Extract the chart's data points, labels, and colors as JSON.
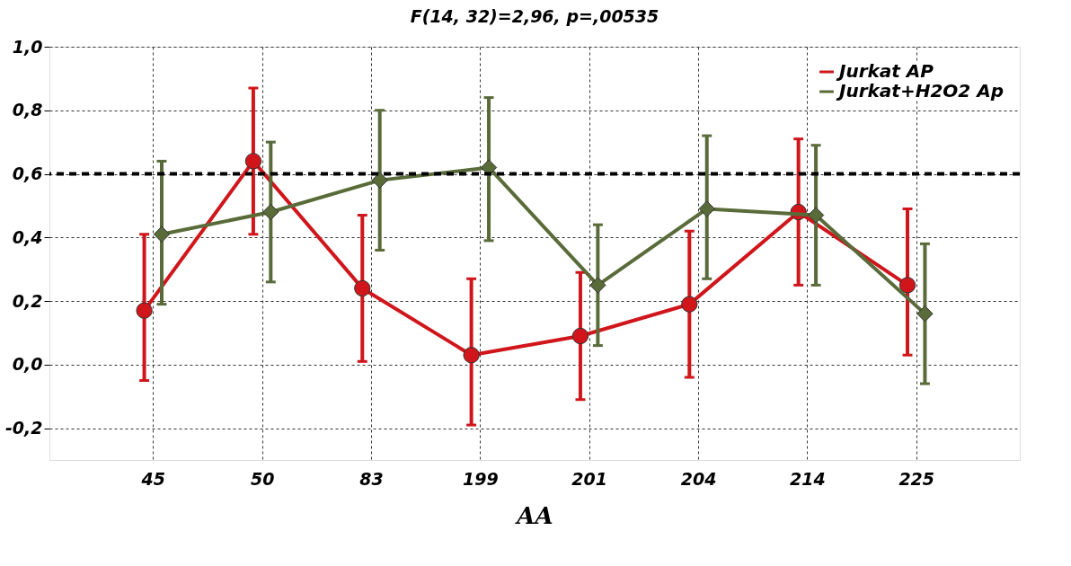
{
  "chart_data": {
    "type": "line",
    "title": "F(14, 32)=2,96, p=,00535",
    "xlabel": "AA",
    "categories": [
      "45",
      "50",
      "83",
      "199",
      "201",
      "204",
      "214",
      "225"
    ],
    "series": [
      {
        "name": "Jurkat AP",
        "color": "#d0161b",
        "marker": "circle",
        "values": [
          0.17,
          0.64,
          0.24,
          0.03,
          0.09,
          0.19,
          0.48,
          0.25
        ],
        "errors": [
          [
            -0.05,
            0.41
          ],
          [
            0.41,
            0.87
          ],
          [
            0.01,
            0.47
          ],
          [
            -0.19,
            0.27
          ],
          [
            -0.11,
            0.29
          ],
          [
            -0.04,
            0.42
          ],
          [
            0.25,
            0.71
          ],
          [
            0.03,
            0.49
          ]
        ]
      },
      {
        "name": "Jurkat+H2O2 Ap",
        "color": "#5a6b3a",
        "marker": "diamond",
        "values": [
          0.41,
          0.48,
          0.58,
          0.62,
          0.25,
          0.49,
          0.47,
          0.16
        ],
        "errors": [
          [
            0.19,
            0.64
          ],
          [
            0.26,
            0.7
          ],
          [
            0.36,
            0.8
          ],
          [
            0.39,
            0.84
          ],
          [
            0.06,
            0.44
          ],
          [
            0.27,
            0.72
          ],
          [
            0.25,
            0.69
          ],
          [
            -0.06,
            0.38
          ]
        ]
      }
    ],
    "ylim": [
      -0.3,
      1.0
    ],
    "yticks": [
      {
        "value": -0.2,
        "label": "-0,2"
      },
      {
        "value": 0,
        "label": "0,0"
      },
      {
        "value": 0.2,
        "label": "0,2"
      },
      {
        "value": 0.4,
        "label": "0,4"
      },
      {
        "value": 0.6,
        "label": "0,6"
      },
      {
        "value": 0.8,
        "label": "0,8"
      },
      {
        "value": 1.0,
        "label": "1,0"
      }
    ],
    "ref_lines": [
      {
        "axis": "y",
        "value": 0.6,
        "line_style": "dashed",
        "color": "#000000"
      }
    ],
    "grid": true,
    "legend": "top right",
    "line_style": "solid"
  }
}
